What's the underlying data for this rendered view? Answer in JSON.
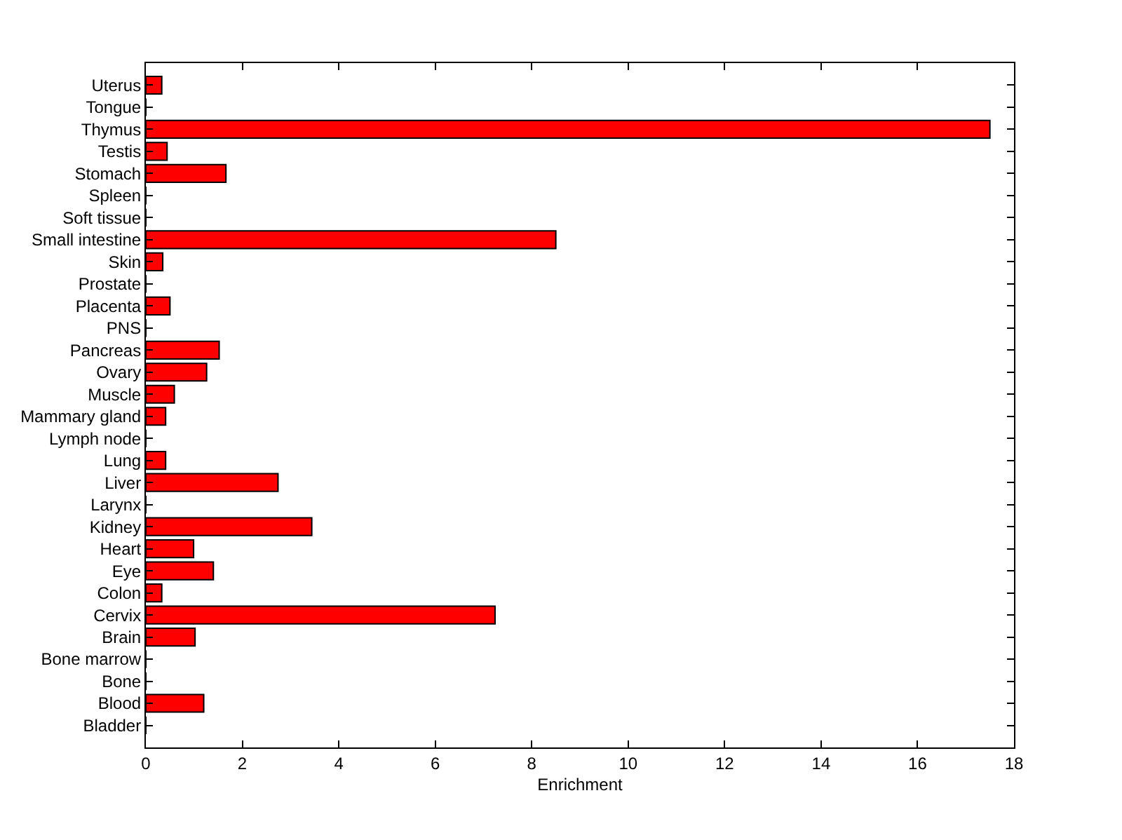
{
  "chart_data": {
    "type": "bar",
    "orientation": "horizontal",
    "xlabel": "Enrichment",
    "categories": [
      "Uterus",
      "Tongue",
      "Thymus",
      "Testis",
      "Stomach",
      "Spleen",
      "Soft tissue",
      "Small intestine",
      "Skin",
      "Prostate",
      "Placenta",
      "PNS",
      "Pancreas",
      "Ovary",
      "Muscle",
      "Mammary gland",
      "Lymph node",
      "Lung",
      "Liver",
      "Larynx",
      "Kidney",
      "Heart",
      "Eye",
      "Colon",
      "Cervix",
      "Brain",
      "Bone marrow",
      "Bone",
      "Blood",
      "Bladder"
    ],
    "values": [
      0.33,
      0,
      17.5,
      0.44,
      1.66,
      0,
      0,
      8.5,
      0.35,
      0,
      0.5,
      0,
      1.52,
      1.26,
      0.59,
      0.41,
      0,
      0.41,
      2.74,
      0,
      3.44,
      0.99,
      1.4,
      0.33,
      7.24,
      1.02,
      0,
      0,
      1.2,
      0
    ],
    "color": "#ff0000",
    "xlim": [
      0,
      18
    ],
    "xticks": [
      0,
      2,
      4,
      6,
      8,
      10,
      12,
      14,
      16,
      18
    ],
    "grid": false,
    "legend": false
  }
}
